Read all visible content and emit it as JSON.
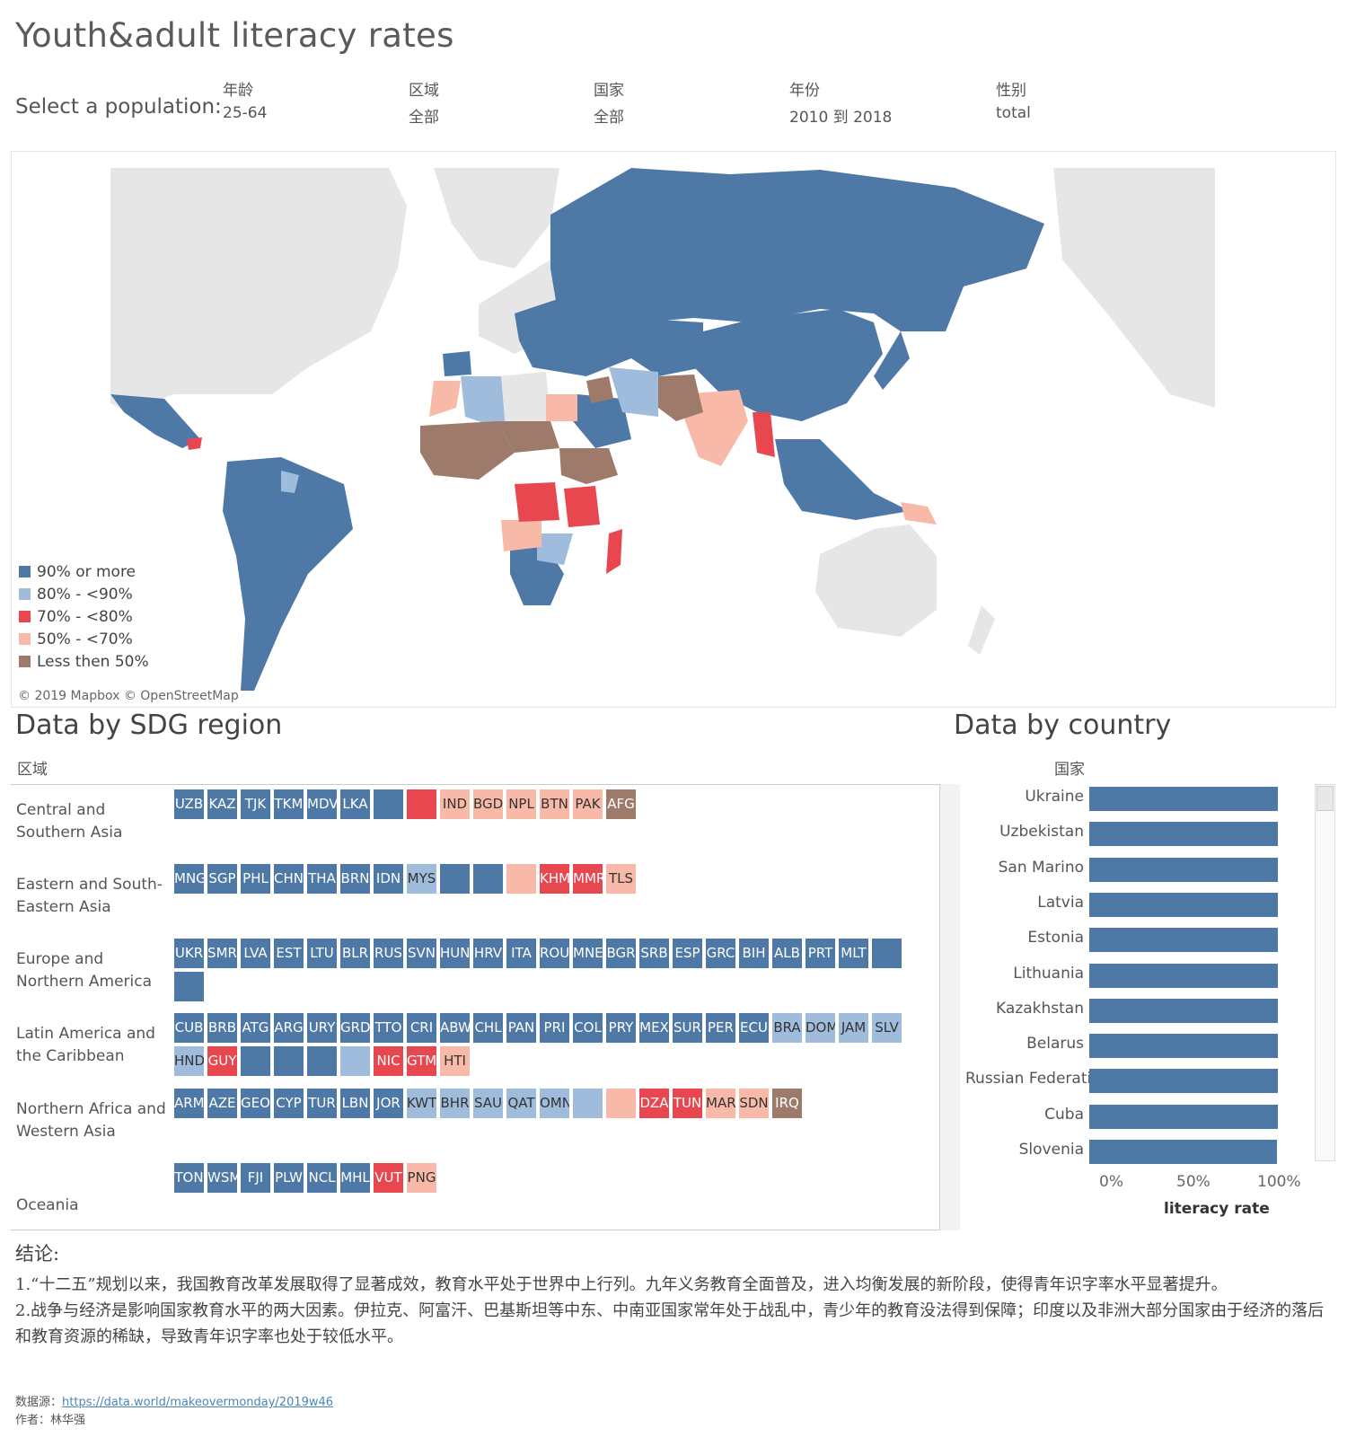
{
  "title": "Youth&adult literacy rates",
  "filters": {
    "select_label": "Select a population:",
    "items": [
      {
        "name": "年龄",
        "value": "25-64"
      },
      {
        "name": "区域",
        "value": "全部"
      },
      {
        "name": "国家",
        "value": "全部"
      },
      {
        "name": "年份",
        "value": "2010 到 2018"
      },
      {
        "name": "性别",
        "value": "total"
      }
    ]
  },
  "colors": {
    "c90": "#4e79a7",
    "c80": "#a0bcdd",
    "c70": "#e8474f",
    "c50": "#f8b9a8",
    "c0": "#9e7a6a",
    "land": "#e4e4e4",
    "water": "#ffffff"
  },
  "legend": [
    {
      "label": "90% or more",
      "color": "#4e79a7"
    },
    {
      "label": "80% - <90%",
      "color": "#a0bcdd"
    },
    {
      "label": "70% - <80%",
      "color": "#e8474f"
    },
    {
      "label": "50% - <70%",
      "color": "#f8b9a8"
    },
    {
      "label": "Less then 50%",
      "color": "#9e7a6a"
    }
  ],
  "map": {
    "attribution": "© 2019 Mapbox © OpenStreetMap"
  },
  "region_section": {
    "title": "Data by SDG region",
    "header": "区域",
    "regions": [
      {
        "name": "Central and Southern Asia",
        "rows": [
          [
            {
              "code": "UZB",
              "band": "c90"
            },
            {
              "code": "KAZ",
              "band": "c90"
            },
            {
              "code": "TJK",
              "band": "c90"
            },
            {
              "code": "TKM",
              "band": "c90"
            },
            {
              "code": "MDV",
              "band": "c90"
            },
            {
              "code": "LKA",
              "band": "c90"
            },
            {
              "code": "",
              "band": "c90"
            },
            {
              "code": "",
              "band": "c70"
            },
            {
              "code": "IND",
              "band": "c50"
            },
            {
              "code": "BGD",
              "band": "c50"
            },
            {
              "code": "NPL",
              "band": "c50"
            },
            {
              "code": "BTN",
              "band": "c50"
            },
            {
              "code": "PAK",
              "band": "c50"
            },
            {
              "code": "AFG",
              "band": "c0"
            }
          ]
        ]
      },
      {
        "name": "Eastern and South-Eastern Asia",
        "rows": [
          [
            {
              "code": "MNG",
              "band": "c90"
            },
            {
              "code": "SGP",
              "band": "c90"
            },
            {
              "code": "PHL",
              "band": "c90"
            },
            {
              "code": "CHN",
              "band": "c90"
            },
            {
              "code": "THA",
              "band": "c90"
            },
            {
              "code": "BRN",
              "band": "c90"
            },
            {
              "code": "IDN",
              "band": "c90"
            },
            {
              "code": "MYS",
              "band": "c80"
            },
            {
              "code": "",
              "band": "c90"
            },
            {
              "code": "",
              "band": "c90"
            },
            {
              "code": "",
              "band": "c50"
            },
            {
              "code": "KHM",
              "band": "c70"
            },
            {
              "code": "MMR",
              "band": "c70"
            },
            {
              "code": "TLS",
              "band": "c50"
            }
          ]
        ]
      },
      {
        "name": "Europe and Northern America",
        "rows": [
          [
            {
              "code": "UKR",
              "band": "c90"
            },
            {
              "code": "SMR",
              "band": "c90"
            },
            {
              "code": "LVA",
              "band": "c90"
            },
            {
              "code": "EST",
              "band": "c90"
            },
            {
              "code": "LTU",
              "band": "c90"
            },
            {
              "code": "BLR",
              "band": "c90"
            },
            {
              "code": "RUS",
              "band": "c90"
            },
            {
              "code": "SVN",
              "band": "c90"
            },
            {
              "code": "HUN",
              "band": "c90"
            },
            {
              "code": "HRV",
              "band": "c90"
            },
            {
              "code": "ITA",
              "band": "c90"
            },
            {
              "code": "ROU",
              "band": "c90"
            },
            {
              "code": "MNE",
              "band": "c90"
            },
            {
              "code": "BGR",
              "band": "c90"
            },
            {
              "code": "SRB",
              "band": "c90"
            },
            {
              "code": "ESP",
              "band": "c90"
            },
            {
              "code": "GRC",
              "band": "c90"
            },
            {
              "code": "BIH",
              "band": "c90"
            },
            {
              "code": "ALB",
              "band": "c90"
            },
            {
              "code": "PRT",
              "band": "c90"
            },
            {
              "code": "MLT",
              "band": "c90"
            },
            {
              "code": "",
              "band": "c90"
            }
          ],
          [
            {
              "code": "",
              "band": "c90"
            }
          ]
        ]
      },
      {
        "name": "Latin America and the Caribbean",
        "rows": [
          [
            {
              "code": "CUB",
              "band": "c90"
            },
            {
              "code": "BRB",
              "band": "c90"
            },
            {
              "code": "ATG",
              "band": "c90"
            },
            {
              "code": "ARG",
              "band": "c90"
            },
            {
              "code": "URY",
              "band": "c90"
            },
            {
              "code": "GRD",
              "band": "c90"
            },
            {
              "code": "TTO",
              "band": "c90"
            },
            {
              "code": "CRI",
              "band": "c90"
            },
            {
              "code": "ABW",
              "band": "c90"
            },
            {
              "code": "CHL",
              "band": "c90"
            },
            {
              "code": "PAN",
              "band": "c90"
            },
            {
              "code": "PRI",
              "band": "c90"
            },
            {
              "code": "COL",
              "band": "c90"
            },
            {
              "code": "PRY",
              "band": "c90"
            },
            {
              "code": "MEX",
              "band": "c90"
            },
            {
              "code": "SUR",
              "band": "c90"
            },
            {
              "code": "PER",
              "band": "c90"
            },
            {
              "code": "ECU",
              "band": "c90"
            },
            {
              "code": "BRA",
              "band": "c80"
            },
            {
              "code": "DOM",
              "band": "c80"
            },
            {
              "code": "JAM",
              "band": "c80"
            },
            {
              "code": "SLV",
              "band": "c80"
            }
          ],
          [
            {
              "code": "HND",
              "band": "c80"
            },
            {
              "code": "GUY",
              "band": "c70"
            },
            {
              "code": "",
              "band": "c90"
            },
            {
              "code": "",
              "band": "c90"
            },
            {
              "code": "",
              "band": "c90"
            },
            {
              "code": "",
              "band": "c80"
            },
            {
              "code": "NIC",
              "band": "c70"
            },
            {
              "code": "GTM",
              "band": "c70"
            },
            {
              "code": "HTI",
              "band": "c50"
            }
          ]
        ]
      },
      {
        "name": "Northern Africa and Western Asia",
        "rows": [
          [
            {
              "code": "ARM",
              "band": "c90"
            },
            {
              "code": "AZE",
              "band": "c90"
            },
            {
              "code": "GEO",
              "band": "c90"
            },
            {
              "code": "CYP",
              "band": "c90"
            },
            {
              "code": "TUR",
              "band": "c90"
            },
            {
              "code": "LBN",
              "band": "c90"
            },
            {
              "code": "JOR",
              "band": "c90"
            },
            {
              "code": "KWT",
              "band": "c80"
            },
            {
              "code": "BHR",
              "band": "c80"
            },
            {
              "code": "SAU",
              "band": "c80"
            },
            {
              "code": "QAT",
              "band": "c80"
            },
            {
              "code": "OMN",
              "band": "c80"
            },
            {
              "code": "",
              "band": "c80"
            },
            {
              "code": "",
              "band": "c50"
            },
            {
              "code": "DZA",
              "band": "c70"
            },
            {
              "code": "TUN",
              "band": "c70"
            },
            {
              "code": "MAR",
              "band": "c50"
            },
            {
              "code": "SDN",
              "band": "c50"
            },
            {
              "code": "IRQ",
              "band": "c0"
            }
          ]
        ]
      },
      {
        "name": "Oceania",
        "rows": [
          [
            {
              "code": "TON",
              "band": "c90"
            },
            {
              "code": "WSM",
              "band": "c90"
            },
            {
              "code": "FJI",
              "band": "c90"
            },
            {
              "code": "PLW",
              "band": "c90"
            },
            {
              "code": "NCL",
              "band": "c90"
            },
            {
              "code": "MHL",
              "band": "c90"
            },
            {
              "code": "VUT",
              "band": "c70"
            },
            {
              "code": "PNG",
              "band": "c50"
            }
          ]
        ]
      }
    ]
  },
  "country_section": {
    "title": "Data by country",
    "header": "国家",
    "axis_title": "literacy rate",
    "ticks": [
      "0%",
      "50%",
      "100%"
    ]
  },
  "chart_data": {
    "type": "bar",
    "categories": [
      "Ukraine",
      "Uzbekistan",
      "San Marino",
      "Latvia",
      "Estonia",
      "Lithuania",
      "Kazakhstan",
      "Belarus",
      "Russian Federati..",
      "Cuba",
      "Slovenia"
    ],
    "values": [
      100,
      100,
      100,
      100,
      100,
      100,
      100,
      100,
      100,
      100,
      99.7
    ],
    "xlabel": "literacy rate",
    "ylabel": "国家",
    "xlim": [
      0,
      100
    ]
  },
  "conclusion": {
    "title": "结论:",
    "p1": "1.“十二五”规划以来，我国教育改革发展取得了显著成效，教育水平处于世界中上行列。九年义务教育全面普及，进入均衡发展的新阶段，使得青年识字率水平显著提升。",
    "p2": "2.战争与经济是影响国家教育水平的两大因素。伊拉克、阿富汗、巴基斯坦等中东、中南亚国家常年处于战乱中，青少年的教育没法得到保障；印度以及非洲大部分国家由于经济的落后和教育资源的稀缺，导致青年识字率也处于较低水平。"
  },
  "footer": {
    "source_label": "数据源：",
    "source_url": "https://data.world/makeovermonday/2019w46",
    "author": "作者：林华强"
  }
}
